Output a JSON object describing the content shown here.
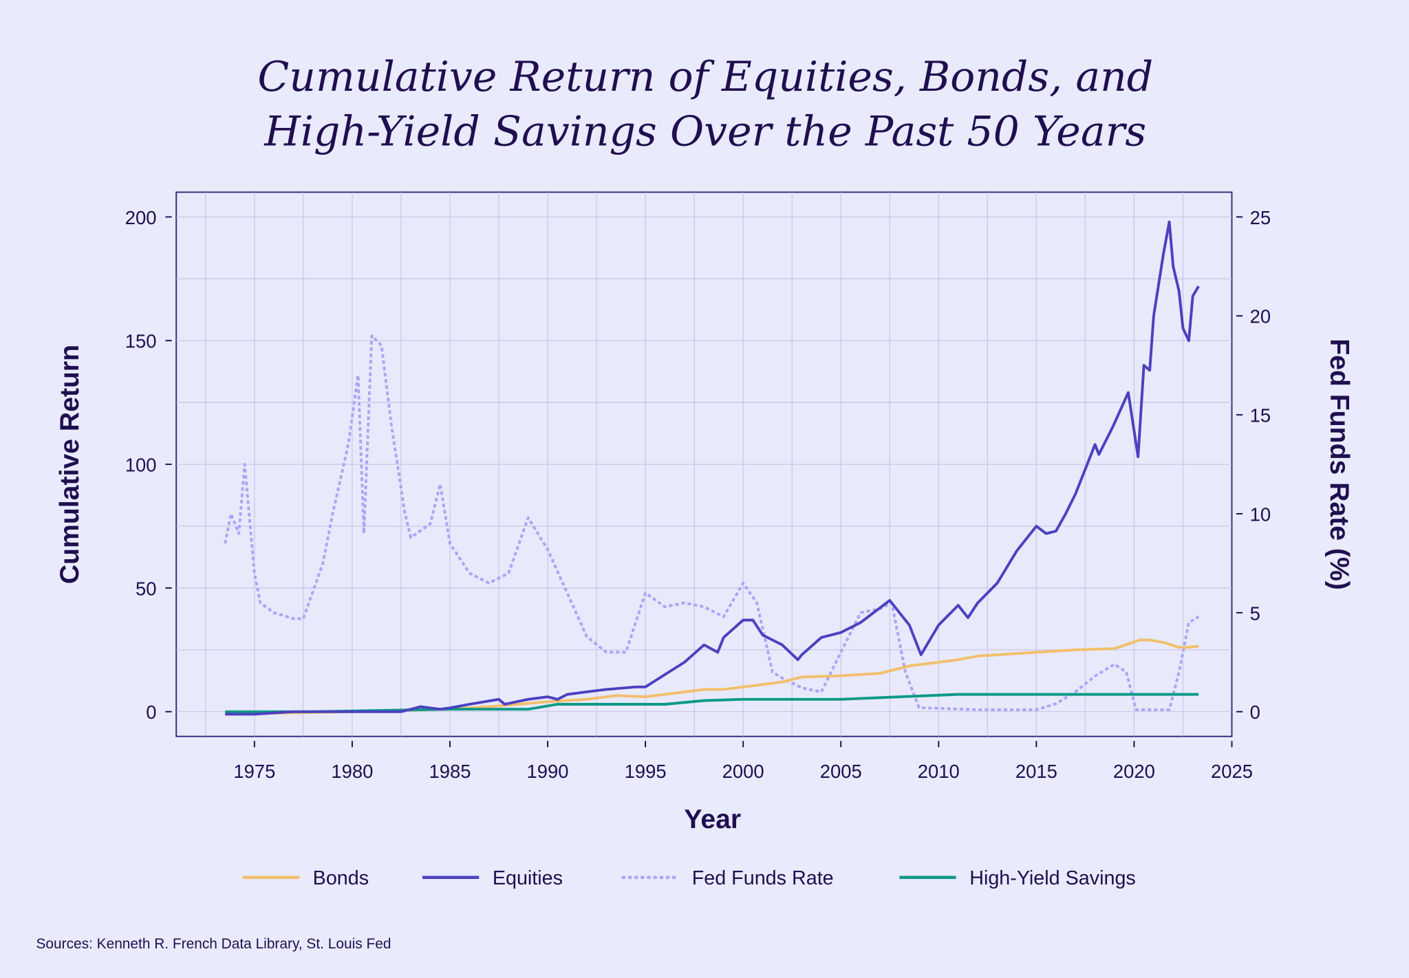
{
  "chart_data": {
    "type": "line",
    "title_lines": [
      "Cumulative Return of Equities, Bonds, and",
      "High-Yield Savings Over the Past 50 Years"
    ],
    "xlabel": "Year",
    "ylabel": "Cumulative Return",
    "y2label": "Fed Funds Rate (%)",
    "xlim": [
      1971,
      2025
    ],
    "ylim": [
      -10,
      210
    ],
    "y2lim": [
      -1.25,
      26.25
    ],
    "xticks": [
      1975,
      1980,
      1985,
      1990,
      1995,
      2000,
      2005,
      2010,
      2015,
      2020,
      2025
    ],
    "yticks": [
      0,
      50,
      100,
      150,
      200
    ],
    "y2ticks": [
      0,
      5,
      10,
      15,
      20,
      25
    ],
    "grid": true,
    "legend_position": "bottom",
    "source": "Sources: Kenneth R. French Data Library, St. Louis Fed",
    "series": [
      {
        "name": "Bonds",
        "axis": "left",
        "style": "solid",
        "color": "#f2bf6c",
        "x": [
          1973.5,
          1980,
          1985,
          1987,
          1990,
          1992,
          1993.5,
          1995,
          1996,
          1998,
          1999,
          2000,
          2001,
          2002,
          2003,
          2005,
          2007,
          2008.5,
          2010,
          2011,
          2012,
          2013,
          2015,
          2017,
          2019,
          2020.3,
          2020.8,
          2021.5,
          2022.3,
          2022.8,
          2023.3
        ],
        "y": [
          -1,
          0,
          1,
          2,
          4,
          5,
          6.5,
          6,
          7,
          9,
          9,
          10,
          11,
          12,
          14,
          14.5,
          15.5,
          18.5,
          20,
          21,
          22.5,
          23,
          24,
          25,
          25.5,
          29,
          29,
          28,
          26,
          26,
          26.5
        ]
      },
      {
        "name": "Equities",
        "axis": "left",
        "style": "solid",
        "color": "#4b41c0",
        "x": [
          1973.5,
          1975,
          1977,
          1980,
          1982.5,
          1983.5,
          1984.5,
          1985,
          1986,
          1987.5,
          1987.8,
          1989,
          1990,
          1990.5,
          1991,
          1992,
          1993,
          1994.5,
          1995,
          1996,
          1997,
          1998,
          1998.7,
          1999,
          2000,
          2000.5,
          2001,
          2002,
          2002.8,
          2003,
          2004,
          2005,
          2006,
          2007,
          2007.5,
          2008,
          2008.5,
          2009.1,
          2010,
          2011,
          2011.5,
          2012,
          2013,
          2014,
          2015,
          2015.5,
          2016,
          2016.5,
          2017,
          2018,
          2018.2,
          2018.9,
          2019.7,
          2020.2,
          2020.5,
          2020.8,
          2021,
          2021.5,
          2021.8,
          2022,
          2022.3,
          2022.5,
          2022.8,
          2023,
          2023.3
        ],
        "y": [
          -1,
          -1,
          0,
          0,
          0,
          2,
          1,
          1.5,
          3,
          5,
          3,
          5,
          6,
          5,
          7,
          8,
          9,
          10,
          10,
          15,
          20,
          27,
          24,
          30,
          37,
          37,
          31,
          27,
          21,
          23,
          30,
          32,
          36,
          42,
          45,
          40,
          35,
          23,
          35,
          43,
          38,
          44,
          52,
          65,
          75,
          72,
          73,
          80,
          88,
          108,
          104,
          115,
          129,
          103,
          140,
          138,
          160,
          185,
          198,
          180,
          170,
          155,
          150,
          168,
          172
        ]
      },
      {
        "name": "Fed Funds Rate",
        "axis": "right",
        "style": "dotted",
        "color": "#aba5f6",
        "x": [
          1973.5,
          1973.8,
          1974.2,
          1974.5,
          1975,
          1975.3,
          1976,
          1977,
          1977.5,
          1978.5,
          1979,
          1979.8,
          1980.3,
          1980.6,
          1981,
          1981.5,
          1982,
          1982.7,
          1983,
          1984,
          1984.5,
          1985,
          1986,
          1987,
          1988,
          1989,
          1990,
          1991,
          1992,
          1993,
          1994,
          1995,
          1996,
          1997,
          1998,
          1999,
          2000,
          2000.7,
          2001.5,
          2002,
          2003,
          2004,
          2005,
          2006,
          2007,
          2007.6,
          2008.3,
          2009,
          2012,
          2015,
          2016,
          2017,
          2018,
          2019,
          2019.6,
          2020.1,
          2021,
          2021.8,
          2022.3,
          2022.8,
          2023.3
        ],
        "y": [
          8.5,
          10,
          9,
          12.5,
          7,
          5.5,
          5,
          4.7,
          4.7,
          7.5,
          10,
          13.5,
          17,
          9,
          19,
          18.5,
          14.5,
          10,
          8.8,
          9.5,
          11.5,
          8.5,
          7,
          6.5,
          7,
          9.8,
          8.2,
          6,
          3.8,
          3,
          3,
          6,
          5.3,
          5.5,
          5.3,
          4.8,
          6.5,
          5.5,
          2,
          1.7,
          1.2,
          1,
          3,
          5,
          5.2,
          5.5,
          2,
          0.2,
          0.1,
          0.1,
          0.4,
          1,
          1.8,
          2.4,
          2,
          0.1,
          0.1,
          0.1,
          2,
          4.5,
          4.8
        ]
      },
      {
        "name": "High-Yield Savings",
        "axis": "left",
        "style": "solid",
        "color": "#0b9a86",
        "x": [
          1973.5,
          1978,
          1985,
          1989,
          1990.5,
          1996,
          1998,
          2000,
          2005,
          2008,
          2011,
          2020,
          2023.3
        ],
        "y": [
          0,
          0,
          1,
          1,
          3,
          3,
          4.5,
          5,
          5,
          6,
          7,
          7,
          7
        ]
      }
    ]
  }
}
